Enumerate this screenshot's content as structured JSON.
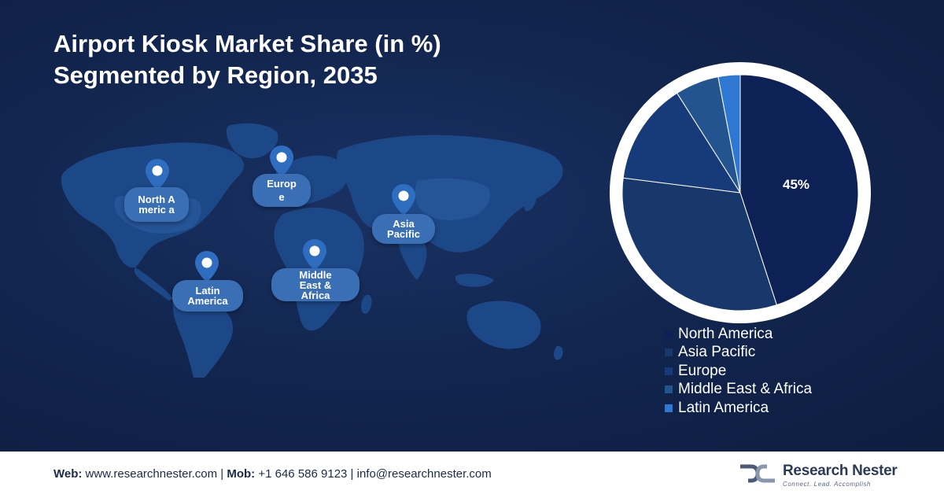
{
  "title": {
    "line1": "Airport Kiosk Market Share (in %)",
    "line2": "Segmented by Region, 2035"
  },
  "map": {
    "markers": [
      {
        "id": "north-america",
        "label": "North Americ a"
      },
      {
        "id": "europe",
        "label": "Europ e"
      },
      {
        "id": "asia-pacific",
        "label": "Asia Pacific"
      },
      {
        "id": "latin-america",
        "label": "Latin America"
      },
      {
        "id": "mea",
        "label": "Middle East & Africa"
      }
    ]
  },
  "chart_data": {
    "type": "pie",
    "title": "Airport Kiosk Market Share (in %) Segmented by Region, 2035",
    "slices": [
      {
        "name": "North America",
        "value": 45,
        "label": "45%",
        "color": "#0d2157"
      },
      {
        "name": "Asia Pacific",
        "value": 32,
        "color": "#18376b"
      },
      {
        "name": "Europe",
        "value": 14,
        "color": "#173a7a"
      },
      {
        "name": "Middle East & Africa",
        "value": 6,
        "color": "#23548f"
      },
      {
        "name": "Latin America",
        "value": 3,
        "color": "#2e78d3"
      }
    ],
    "start_angle_deg": 0,
    "direction": "clockwise",
    "legend_position": "below"
  },
  "footer": {
    "web_label": "Web:",
    "web_value": " www.researchnester.com | ",
    "mob_label": "Mob:",
    "mob_value": " +1 646 586 9123 | info@researchnester.com",
    "brand": "Research Nester",
    "tagline": "Connect. Lead. Accomplish"
  },
  "colors": {
    "background": "#122650",
    "accent": "#3a6fb6",
    "ring": "#ffffff"
  }
}
